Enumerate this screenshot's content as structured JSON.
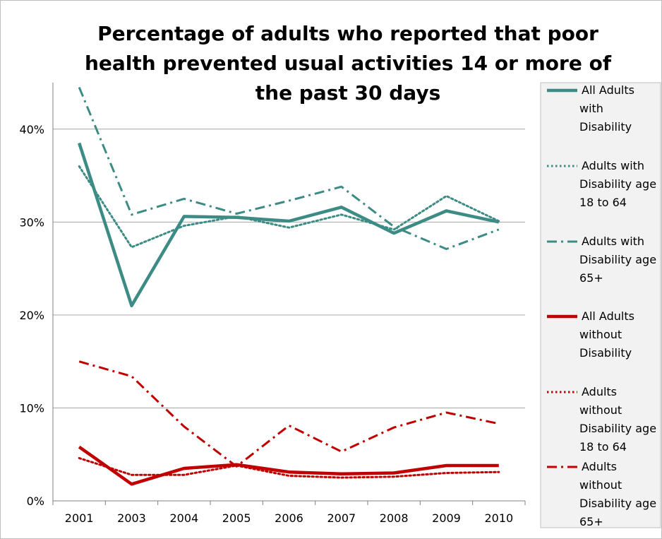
{
  "chart_data": {
    "type": "line",
    "title_lines": [
      "Percentage of adults who reported that poor",
      "health prevented usual activities 14 or more of",
      "the past 30 days"
    ],
    "xlabel": "",
    "ylabel": "",
    "categories": [
      "2001",
      "2003",
      "2004",
      "2005",
      "2006",
      "2007",
      "2008",
      "2009",
      "2010"
    ],
    "ylim": [
      0,
      45
    ],
    "yticks": [
      0,
      10,
      20,
      30,
      40
    ],
    "ytick_labels": [
      "0%",
      "10%",
      "20%",
      "30%",
      "40%"
    ],
    "grid": true,
    "legend_position": "right",
    "series": [
      {
        "name": "All Adults with Disability",
        "legend_lines": [
          "All Adults",
          "with",
          "Disability"
        ],
        "color": "#3C8C85",
        "dash": "solid",
        "weight": "thick",
        "values": [
          38.5,
          21.0,
          30.6,
          30.5,
          30.1,
          31.6,
          28.8,
          31.2,
          30.0
        ]
      },
      {
        "name": "Adults with Disability age 18 to 64",
        "legend_lines": [
          "Adults with",
          "Disability age",
          "18 to 64"
        ],
        "color": "#3C8C85",
        "dash": "dot",
        "weight": "thin",
        "values": [
          36.0,
          27.3,
          29.6,
          30.6,
          29.4,
          30.8,
          29.2,
          32.8,
          30.1
        ]
      },
      {
        "name": "Adults with Disability age 65+",
        "legend_lines": [
          "Adults with",
          "Disability age",
          "65+"
        ],
        "color": "#3C8C85",
        "dash": "dashdot",
        "weight": "thin",
        "values": [
          44.5,
          30.8,
          32.5,
          30.9,
          32.3,
          33.8,
          29.5,
          27.1,
          29.2
        ]
      },
      {
        "name": "All Adults without Disability",
        "legend_lines": [
          "All Adults",
          "without",
          "Disability"
        ],
        "color": "#C00000",
        "dash": "solid",
        "weight": "thick",
        "values": [
          5.8,
          1.8,
          3.5,
          3.9,
          3.1,
          2.9,
          3.0,
          3.8,
          3.8
        ]
      },
      {
        "name": "Adults without Disability age 18 to 64",
        "legend_lines": [
          "Adults",
          "without",
          "Disability age",
          "18 to 64"
        ],
        "color": "#C00000",
        "dash": "dot",
        "weight": "thin",
        "values": [
          4.6,
          2.8,
          2.8,
          3.8,
          2.7,
          2.5,
          2.6,
          3.0,
          3.1
        ]
      },
      {
        "name": "Adults without Disability age 65+",
        "legend_lines": [
          "Adults",
          "without",
          "Disability age",
          "65+"
        ],
        "color": "#C00000",
        "dash": "dashdot",
        "weight": "thin",
        "values": [
          15.0,
          13.4,
          8.0,
          3.7,
          8.1,
          5.3,
          7.9,
          9.5,
          8.3
        ]
      }
    ]
  }
}
